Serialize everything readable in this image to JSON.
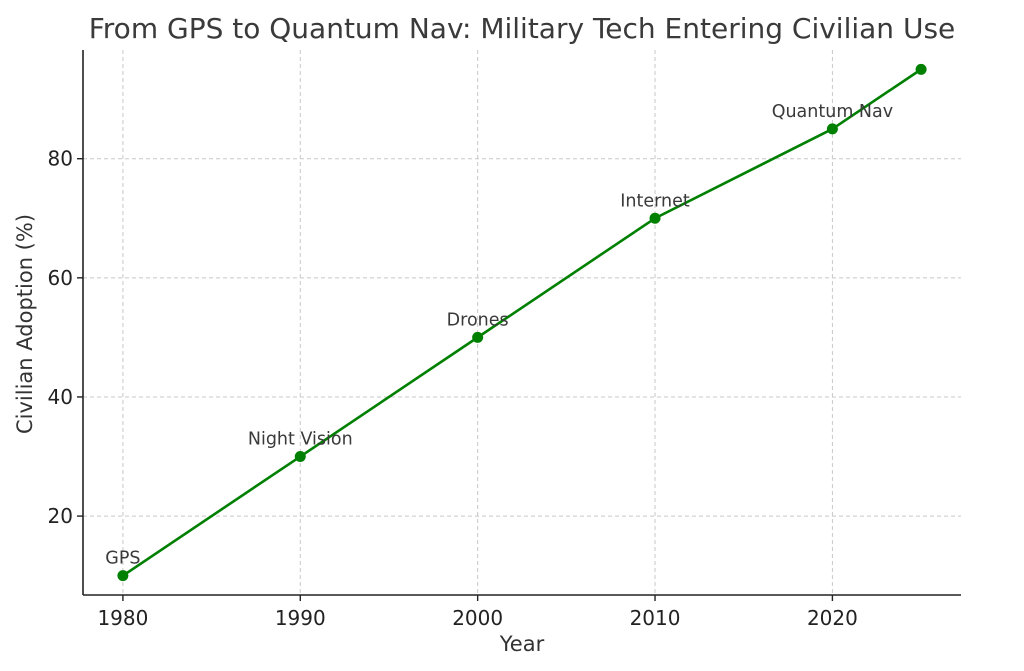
{
  "chart_data": {
    "type": "line",
    "title": "From GPS to Quantum Nav: Military Tech Entering Civilian Use",
    "xlabel": "Year",
    "ylabel": "Civilian Adoption (%)",
    "xlim": [
      1977.75,
      2027.25
    ],
    "ylim": [
      6.75,
      98.25
    ],
    "xticks": [
      1980,
      1990,
      2000,
      2010,
      2020
    ],
    "yticks": [
      20,
      40,
      60,
      80
    ],
    "grid": true,
    "line_color": "#008000",
    "series": [
      {
        "name": "",
        "x": [
          1980,
          1990,
          2000,
          2010,
          2020,
          2025
        ],
        "y": [
          10,
          30,
          50,
          70,
          85,
          95
        ]
      }
    ],
    "annotations": [
      {
        "text": "GPS",
        "x": 1980,
        "y": 10
      },
      {
        "text": "Night Vision",
        "x": 1990,
        "y": 30
      },
      {
        "text": "Drones",
        "x": 2000,
        "y": 50
      },
      {
        "text": "Internet",
        "x": 2010,
        "y": 70
      },
      {
        "text": "Quantum Nav",
        "x": 2020,
        "y": 85
      }
    ]
  }
}
